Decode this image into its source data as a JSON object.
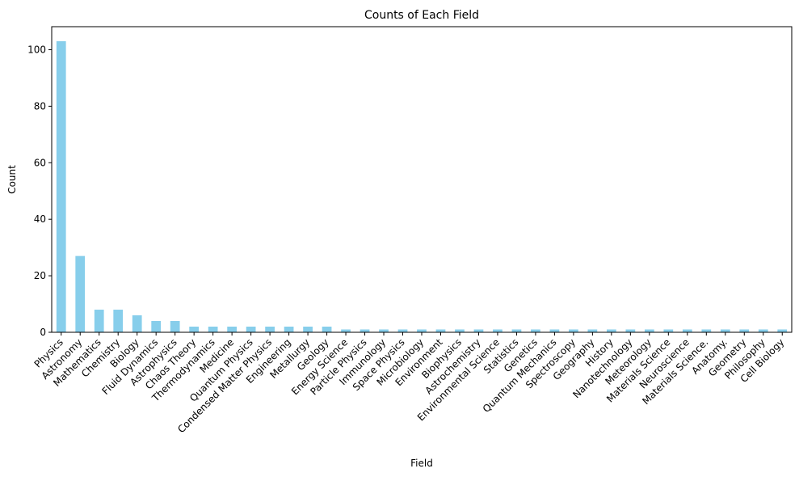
{
  "chart_data": {
    "type": "bar",
    "title": "Counts of Each Field",
    "xlabel": "Field",
    "ylabel": "Count",
    "ylim": [
      0,
      108.15
    ],
    "yticks": [
      0,
      20,
      40,
      60,
      80,
      100
    ],
    "bar_color": "#87ceeb",
    "grid": false,
    "legend": "none",
    "categories": [
      "Physics",
      "Astronomy",
      "Mathematics",
      "Chemistry",
      "Biology",
      "Fluid Dynamics",
      "Astrophysics",
      "Chaos Theory",
      "Thermodynamics",
      "Medicine",
      "Quantum Physics",
      "Condensed Matter Physics",
      "Engineering",
      "Metallurgy",
      "Geology",
      "Energy Science",
      "Particle Physics",
      "Immunology",
      "Space Physics",
      "Microbiology",
      "Environment",
      "Biophysics",
      "Astrochemistry",
      "Environmental Science",
      "Statistics",
      "Genetics",
      "Quantum Mechanics",
      "Spectroscopy",
      "Geography",
      "History",
      "Nanotechnology",
      "Meteorology",
      "Materials Science",
      "Neuroscience",
      "Materials Science.",
      "Anatomy.",
      "Geometry",
      "Philosophy",
      "Cell Biology"
    ],
    "values": [
      103,
      27,
      8,
      8,
      6,
      4,
      4,
      2,
      2,
      2,
      2,
      2,
      2,
      2,
      2,
      1,
      1,
      1,
      1,
      1,
      1,
      1,
      1,
      1,
      1,
      1,
      1,
      1,
      1,
      1,
      1,
      1,
      1,
      1,
      1,
      1,
      1,
      1,
      1
    ]
  }
}
